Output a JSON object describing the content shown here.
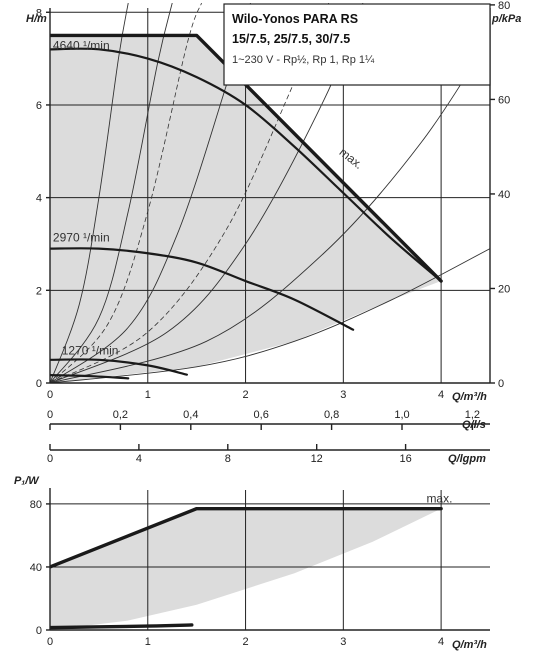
{
  "chart_data": [
    {
      "type": "line",
      "title": "Wilo-Yonos PARA RS",
      "subtitle": "15/7.5, 25/7.5, 30/7.5",
      "subtitle2": "1~230 V - Rp½, Rp 1, Rp 1¼",
      "ylabel": "H/m",
      "y2label": "p/kPa",
      "xlabel": "Q/m³/h",
      "xlim": [
        0,
        4.5
      ],
      "ylim": [
        0,
        8.2
      ],
      "y2lim": [
        0,
        80.4
      ],
      "xticks": [
        "0",
        "1",
        "2",
        "3",
        "4"
      ],
      "yticks": [
        "0",
        "2",
        "4",
        "6",
        "8"
      ],
      "y2ticks": [
        "0",
        "20",
        "40",
        "60",
        "80"
      ],
      "secondary_axes": [
        {
          "label": "Q/l/s",
          "ticks": [
            "0",
            "0,2",
            "0,4",
            "0,6",
            "0,8",
            "1,0",
            "1,2"
          ],
          "values": [
            0,
            0.2,
            0.4,
            0.6,
            0.8,
            1.0,
            1.2
          ],
          "factor": 3.6
        },
        {
          "label": "Q/lgpm",
          "ticks": [
            "0",
            "4",
            "8",
            "12",
            "16"
          ],
          "values": [
            0,
            4,
            8,
            12,
            16
          ],
          "factor": 0.2273
        }
      ],
      "annotations": [
        {
          "text": "4640 ¹/min",
          "x": 0.03,
          "y": 7.2
        },
        {
          "text": "2970 ¹/min",
          "x": 0.03,
          "y": 3.05
        },
        {
          "text": "1270 ¹/min",
          "x": 0.12,
          "y": 0.62
        },
        {
          "text": "max.",
          "x": 2.95,
          "y": 4.95
        }
      ],
      "series": [
        {
          "name": "max.",
          "x": [
            0,
            1.5,
            4
          ],
          "y": [
            7.5,
            7.5,
            2.2
          ]
        },
        {
          "name": "4640 ¹/min",
          "x": [
            0,
            0.5,
            1.0,
            1.5,
            2.0,
            2.5,
            3.0,
            3.5,
            4.0
          ],
          "y": [
            7.2,
            7.2,
            7.0,
            6.6,
            6.0,
            5.1,
            4.1,
            3.1,
            2.2
          ]
        },
        {
          "name": "2970 ¹/min",
          "x": [
            0,
            0.5,
            1.0,
            1.5,
            2.0,
            2.5,
            3.1
          ],
          "y": [
            2.9,
            2.9,
            2.8,
            2.6,
            2.2,
            1.8,
            1.15
          ]
        },
        {
          "name": "1270 ¹/min",
          "x": [
            0,
            0.5,
            1.0,
            1.4
          ],
          "y": [
            0.5,
            0.5,
            0.38,
            0.18
          ]
        },
        {
          "name": "min",
          "x": [
            0,
            0.4,
            0.8
          ],
          "y": [
            0.17,
            0.15,
            0.1
          ]
        }
      ],
      "system_curves": [
        {
          "x": [
            0,
            0.3,
            0.5,
            0.7,
            0.8
          ],
          "y": [
            0,
            1.7,
            4.0,
            7.0,
            8.2
          ]
        },
        {
          "x": [
            0,
            0.5,
            0.8,
            1.1,
            1.25
          ],
          "y": [
            0,
            1.4,
            3.7,
            6.9,
            8.2
          ]
        },
        {
          "x": [
            0,
            0.8,
            1.3,
            1.8,
            2.05
          ],
          "y": [
            0,
            1.2,
            3.2,
            6.4,
            8.2
          ]
        },
        {
          "x": [
            0,
            1.2,
            2.0,
            2.8,
            3.2
          ],
          "y": [
            0,
            1.1,
            3.0,
            6.1,
            8.2
          ]
        },
        {
          "x": [
            0,
            1.6,
            2.8,
            3.8,
            4.6
          ],
          "y": [
            0,
            0.9,
            2.8,
            5.2,
            7.8
          ]
        }
      ],
      "dashed_curves": [
        {
          "x": [
            0,
            0.6,
            1.0,
            1.4,
            1.55
          ],
          "y": [
            0,
            1.3,
            3.7,
            7.3,
            8.2
          ]
        },
        {
          "x": [
            0,
            1.0,
            1.8,
            2.5,
            2.85
          ],
          "y": [
            0,
            1.1,
            3.3,
            6.5,
            8.2
          ]
        }
      ],
      "lowest_system_curve": {
        "x": [
          0,
          1.5,
          2.5,
          3.5,
          4.5
        ],
        "y": [
          0,
          0.35,
          0.9,
          1.8,
          2.9
        ]
      },
      "grid": true
    },
    {
      "type": "line",
      "ylabel": "P₁/W",
      "xlabel": "Q/m³/h",
      "xlim": [
        0,
        4.5
      ],
      "ylim": [
        0,
        92
      ],
      "xticks": [
        "0",
        "1",
        "2",
        "3",
        "4"
      ],
      "yticks": [
        "0",
        "40",
        "80"
      ],
      "annotations": [
        {
          "text": "max.",
          "x": 3.85,
          "y": 81
        }
      ],
      "series": [
        {
          "name": "max.",
          "x": [
            0,
            1.5,
            4
          ],
          "y": [
            40,
            77,
            77
          ]
        },
        {
          "name": "min",
          "x": [
            0,
            1.0,
            1.45
          ],
          "y": [
            1.5,
            2.5,
            3.2
          ]
        }
      ],
      "shaded_lower_edge": {
        "x": [
          0,
          0.8,
          1.5,
          2.5,
          3.3,
          4.0
        ],
        "y": [
          0,
          6,
          16,
          36,
          56,
          77
        ]
      },
      "grid": true
    }
  ]
}
